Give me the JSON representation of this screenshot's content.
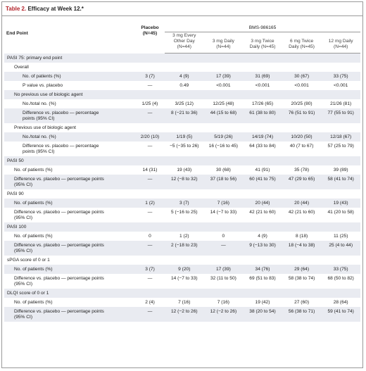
{
  "header": {
    "title_label": "Table 2.",
    "title": "Efficacy at Week 12.*"
  },
  "table": {
    "columns": {
      "end_point": "End Point",
      "placebo": "Placebo (N=45)",
      "drug": "BMS-986165",
      "doses": [
        "3 mg Every Other Day (N=44)",
        "3 mg Daily (N=44)",
        "3 mg Twice Daily (N=45)",
        "6 mg Twice Daily (N=45)",
        "12 mg Daily (N=44)"
      ]
    },
    "sections": [
      {
        "title": "PASI 75: primary end point",
        "groups": [
          {
            "title": "Overall",
            "rows": [
              {
                "label": "No. of patients (%)",
                "values": [
                  "3 (7)",
                  "4 (9)",
                  "17 (39)",
                  "31 (69)",
                  "30 (67)",
                  "33 (75)"
                ]
              },
              {
                "label": "P value vs. placebo",
                "values": [
                  "—",
                  "0.49",
                  "<0.001",
                  "<0.001",
                  "<0.001",
                  "<0.001"
                ]
              }
            ]
          },
          {
            "title": "No previous use of biologic agent",
            "rows": [
              {
                "label": "No./total no. (%)",
                "values": [
                  "1/25 (4)",
                  "3/25 (12)",
                  "12/25 (48)",
                  "17/26 (65)",
                  "20/25 (80)",
                  "21/26 (81)"
                ]
              },
              {
                "label": "Difference vs. placebo — percentage points (95% CI)",
                "values": [
                  "—",
                  "8 (−21 to 36)",
                  "44 (15 to 68)",
                  "61 (38 to 80)",
                  "76 (51 to 91)",
                  "77 (55 to 91)"
                ]
              }
            ]
          },
          {
            "title": "Previous use of biologic agent",
            "rows": [
              {
                "label": "No./total no. (%)",
                "values": [
                  "2/20 (10)",
                  "1/19 (5)",
                  "5/19 (26)",
                  "14/19 (74)",
                  "10/20 (50)",
                  "12/18 (67)"
                ]
              },
              {
                "label": "Difference vs. placebo — percentage points (95% CI)",
                "values": [
                  "—",
                  "−5 (−35 to 26)",
                  "16 (−16 to 45)",
                  "64 (33 to 84)",
                  "40 (7 to 67)",
                  "57 (25 to 79)"
                ]
              }
            ]
          }
        ]
      },
      {
        "title": "PASI 50",
        "rows": [
          {
            "label": "No. of patients (%)",
            "values": [
              "14 (31)",
              "19 (43)",
              "30 (68)",
              "41 (91)",
              "35 (78)",
              "39 (89)"
            ]
          },
          {
            "label": "Difference vs. placebo — percentage points (95% CI)",
            "values": [
              "—",
              "12 (−8 to 32)",
              "37 (18 to 56)",
              "60 (41 to 75)",
              "47 (29 to 65)",
              "58 (41 to 74)"
            ]
          }
        ]
      },
      {
        "title": "PASI 90",
        "rows": [
          {
            "label": "No. of patients (%)",
            "values": [
              "1 (2)",
              "3 (7)",
              "7 (16)",
              "20 (44)",
              "20 (44)",
              "19 (43)"
            ]
          },
          {
            "label": "Difference vs. placebo — percentage points (95% CI)",
            "values": [
              "—",
              "5 (−16 to 25)",
              "14 (−7 to 33)",
              "42 (21 to 60)",
              "42 (21 to 60)",
              "41 (20 to 58)"
            ]
          }
        ]
      },
      {
        "title": "PASI 100",
        "rows": [
          {
            "label": "No. of patients (%)",
            "values": [
              "0",
              "1 (2)",
              "0",
              "4 (9)",
              "8 (18)",
              "11 (25)"
            ]
          },
          {
            "label": "Difference vs. placebo — percentage points (95% CI)",
            "values": [
              "—",
              "2 (−18 to 23)",
              "—",
              "9 (−13 to 30)",
              "18 (−4 to 38)",
              "25 (4 to 44)"
            ]
          }
        ]
      },
      {
        "title": "sPGA score of 0 or 1",
        "rows": [
          {
            "label": "No. of patients (%)",
            "values": [
              "3 (7)",
              "9 (20)",
              "17 (39)",
              "34 (76)",
              "29 (64)",
              "33 (75)"
            ]
          },
          {
            "label": "Difference vs. placebo — percentage points (95% CI)",
            "values": [
              "—",
              "14 (−7 to 33)",
              "32 (11 to 50)",
              "69 (51 to 83)",
              "58 (38 to 74)",
              "68 (50 to 82)"
            ]
          }
        ]
      },
      {
        "title": "DLQI score of 0 or 1",
        "rows": [
          {
            "label": "No. of patients (%)",
            "values": [
              "2 (4)",
              "7 (16)",
              "7 (16)",
              "19 (42)",
              "27 (60)",
              "28 (64)"
            ]
          },
          {
            "label": "Difference vs. placebo — percentage points (95% CI)",
            "values": [
              "—",
              "12 (−2 to 26)",
              "12 (−2 to 26)",
              "38 (20 to 54)",
              "56 (38 to 71)",
              "59 (41 to 74)"
            ]
          }
        ]
      }
    ]
  }
}
